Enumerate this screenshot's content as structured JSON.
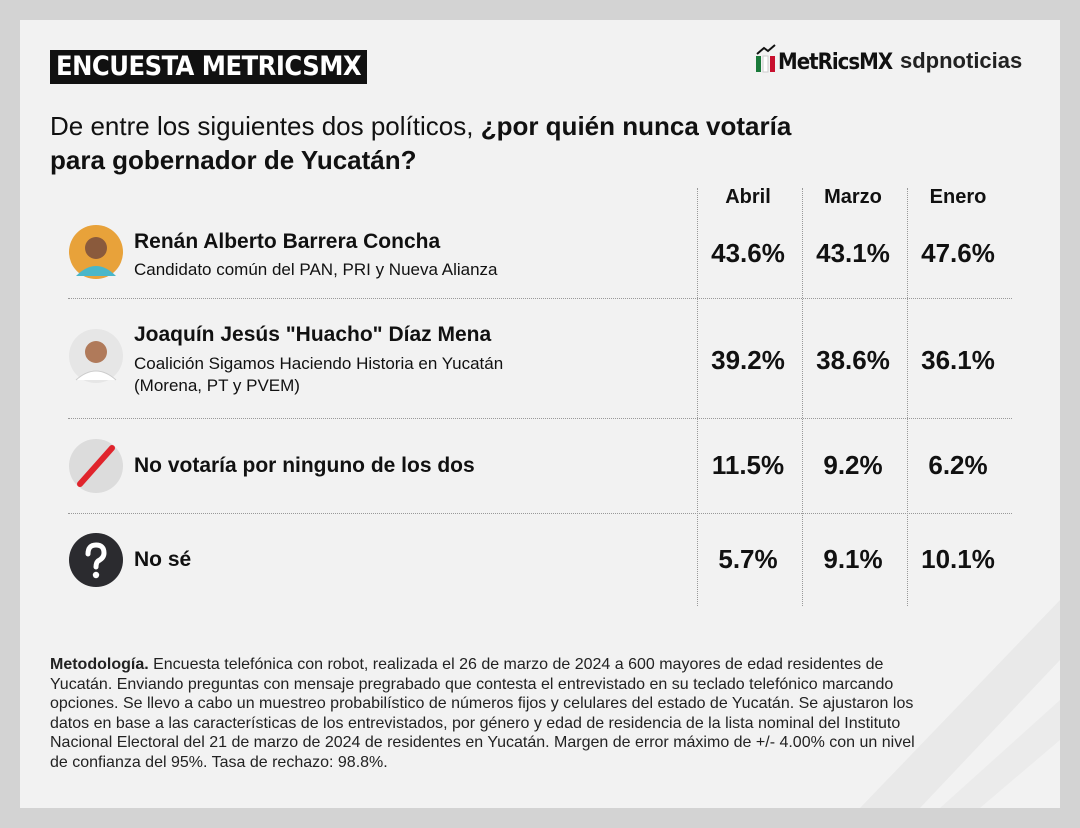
{
  "header": {
    "title": "ENCUESTA METRICSMX",
    "logo_left": "MetRicsMX",
    "logo_right": "sdpnoticias"
  },
  "question": {
    "text": "De entre los siguientes dos políticos, ",
    "bold_line1": "¿por quién nunca votaría",
    "bold_line2": "para gobernador de Yucatán?"
  },
  "table": {
    "columns": [
      "Abril",
      "Marzo",
      "Enero"
    ],
    "rows": [
      {
        "name": "Renán Alberto Barrera Concha",
        "subtitle": [
          "Candidato común del PAN, PRI y Nueva Alianza"
        ],
        "values": [
          "43.6%",
          "43.1%",
          "47.6%"
        ]
      },
      {
        "name": "Joaquín Jesús \"Huacho\" Díaz Mena",
        "subtitle": [
          "Coalición Sigamos Haciendo Historia en Yucatán",
          "(Morena, PT y PVEM)"
        ],
        "values": [
          "39.2%",
          "38.6%",
          "36.1%"
        ]
      },
      {
        "name": "No votaría por ninguno de los dos",
        "values": [
          "11.5%",
          "9.2%",
          "6.2%"
        ]
      },
      {
        "name": "No sé",
        "values": [
          "5.7%",
          "9.1%",
          "10.1%"
        ]
      }
    ]
  },
  "methodology": {
    "label": "Metodología.",
    "lines": [
      " Encuesta telefónica con robot, realizada el 26 de marzo de 2024 a 600 mayores de edad residentes de",
      "Yucatán. Enviando preguntas con mensaje pregrabado que contesta el entrevistado en su teclado telefónico marcando",
      "opciones. Se llevo a cabo un muestreo probabilístico de números fijos y celulares del estado de Yucatán. Se ajustaron los",
      "datos en base a las características de los entrevistados, por género y edad de residencia de la lista nominal del Instituto",
      "Nacional Electoral del 21 de marzo de 2024 de residentes en Yucatán. Margen de error máximo de +/- 4.00% con un nivel",
      "de confianza del 95%. Tasa de rechazo: 98.8%."
    ]
  }
}
